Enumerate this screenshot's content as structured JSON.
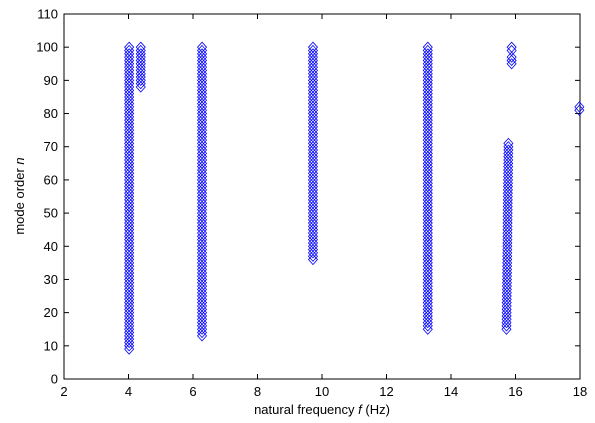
{
  "chart_data": {
    "type": "scatter",
    "title": "",
    "xlabel": {
      "text": "natural frequency ",
      "italic": "f",
      "suffix": " (Hz)"
    },
    "ylabel": {
      "text": "mode order ",
      "italic": "n"
    },
    "xlim": [
      2,
      18
    ],
    "ylim": [
      0,
      110
    ],
    "xticks": [
      2,
      4,
      6,
      8,
      10,
      12,
      14,
      16,
      18
    ],
    "yticks": [
      0,
      10,
      20,
      30,
      40,
      50,
      60,
      70,
      80,
      90,
      100,
      110
    ],
    "grid": false,
    "marker": "diamond",
    "color": "#0000ff",
    "clusters": [
      {
        "f_start": 4.02,
        "f_end": 4.02,
        "n_min": 9,
        "n_max": 100
      },
      {
        "f_start": 4.38,
        "f_end": 4.38,
        "n_min": 88,
        "n_max": 100
      },
      {
        "f_start": 6.28,
        "f_end": 6.28,
        "n_min": 13,
        "n_max": 100
      },
      {
        "f_start": 9.72,
        "f_end": 9.72,
        "n_min": 36,
        "n_max": 100
      },
      {
        "f_start": 13.28,
        "f_end": 13.28,
        "n_min": 15,
        "n_max": 100
      },
      {
        "f_start": 15.72,
        "f_end": 15.78,
        "n_min": 15,
        "n_max": 71
      },
      {
        "f_start": 15.88,
        "f_end": 15.88,
        "n_min": 95,
        "n_max": 97
      },
      {
        "f_start": 15.88,
        "f_end": 15.88,
        "n_min": 99,
        "n_max": 100
      },
      {
        "f_start": 17.98,
        "f_end": 17.98,
        "n_min": 81,
        "n_max": 82
      }
    ]
  }
}
